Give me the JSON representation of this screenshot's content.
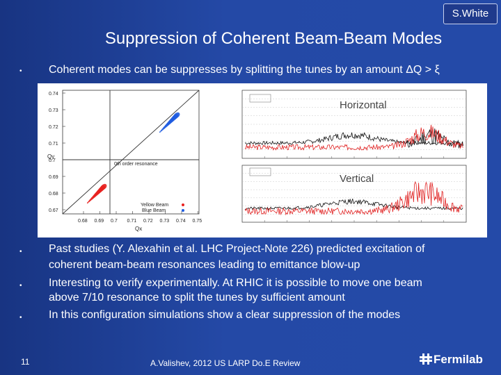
{
  "slide": {
    "title": "Suppression of Coherent Beam-Beam Modes",
    "badge": "S.White",
    "bullets": [
      {
        "marker": "•",
        "text": "Coherent modes can be suppresses by splitting the tunes by an amount ΔQ > ξ"
      },
      {
        "marker": "•",
        "lines": [
          "Past studies (Y. Alexahin et al. LHC Project-Note 226) predicted excitation of",
          "coherent beam-beam resonances leading to emittance blow-up"
        ]
      },
      {
        "marker": "•",
        "lines": [
          "Interesting to verify experimentally. At RHIC it is possible to move one beam",
          "above 7/10 resonance to split the tunes by sufficient amount"
        ]
      },
      {
        "marker": "•",
        "text": "In this configuration simulations show a clear suppression of the modes"
      }
    ],
    "footer": "A.Valishev, 2012 US LARP Do.E Review",
    "page_number": "11",
    "logo_text": "Fermilab",
    "logo_icon": "fermilab-logo-icon"
  },
  "figure": {
    "tune_plot": {
      "xlabel": "Qx",
      "ylabel": "Qy",
      "x_ticks": [
        "0.68",
        "0.69",
        "0.7",
        "0.71",
        "0.72",
        "0.73",
        "0.74",
        "0.75"
      ],
      "y_ticks": [
        "0.74",
        "0.73",
        "0.72",
        "0.71",
        "0.7",
        "0.69",
        "0.68",
        "0.67"
      ],
      "resonance_label": "0th order resonance",
      "legend": [
        {
          "label": "Yellow Beam",
          "color": "#e8211f"
        },
        {
          "label": "Blue Beam",
          "color": "#1f5ce0"
        }
      ]
    },
    "spectra": {
      "horizontal_label": "Horizontal",
      "vertical_label": "Vertical",
      "series_colors": {
        "black": "#111111",
        "red": "#e02020"
      }
    }
  }
}
